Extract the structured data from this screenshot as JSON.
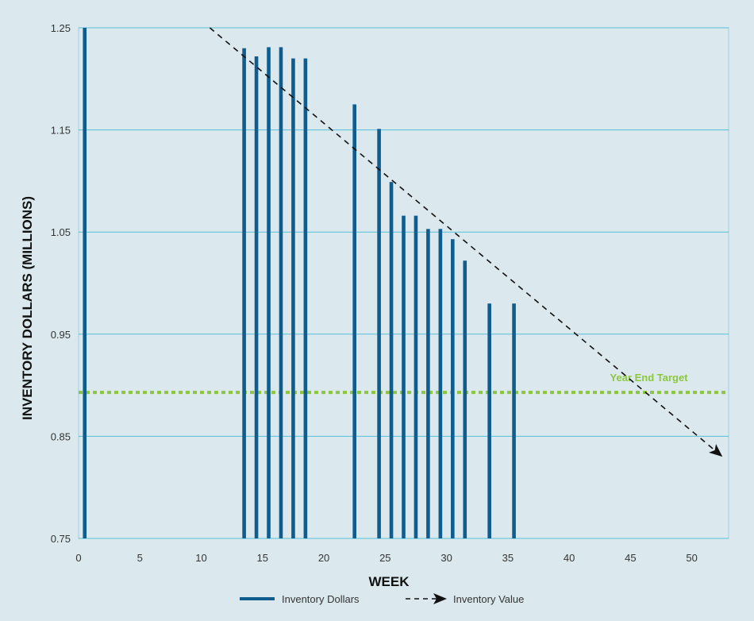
{
  "colors": {
    "background": "#dbe9ee",
    "plot_background": "#dbe9ee",
    "gridline": "#54bfd6",
    "axis": "#9fcedd",
    "bar": "#0f5c8f",
    "trend": "#111111",
    "target": "#8cc63f",
    "tick_text": "#333333"
  },
  "chart_data": {
    "type": "bar",
    "title": "",
    "xlabel": "WEEK",
    "ylabel": "INVENTORY DOLLARS (MILLIONS)",
    "xlim": [
      0,
      53
    ],
    "ylim": [
      0.75,
      1.25
    ],
    "x_ticks": [
      "0",
      "5",
      "10",
      "15",
      "20",
      "25",
      "30",
      "35",
      "40",
      "45",
      "50"
    ],
    "y_ticks": [
      "0.75",
      "0.85",
      "0.95",
      "1.05",
      "1.15",
      "1.25"
    ],
    "grid": "horizontal",
    "legend_position": "bottom-center",
    "series": [
      {
        "name": "Inventory Dollars",
        "type": "bar",
        "x": [
          0.5,
          13.5,
          14.5,
          15.5,
          16.5,
          17.5,
          18.5,
          22.5,
          24.5,
          25.5,
          26.5,
          27.5,
          28.5,
          29.5,
          30.5,
          31.5,
          33.5,
          35.5
        ],
        "values": [
          1.25,
          1.23,
          1.222,
          1.231,
          1.231,
          1.22,
          1.22,
          1.175,
          1.151,
          1.099,
          1.066,
          1.066,
          1.053,
          1.053,
          1.043,
          1.022,
          0.98,
          0.98
        ]
      },
      {
        "name": "Inventory Value",
        "type": "line",
        "style": "dashed-arrow",
        "x": [
          10.7,
          52.5
        ],
        "values": [
          1.25,
          0.83
        ]
      }
    ],
    "reference_lines": [
      {
        "label": "Year End Target",
        "value": 0.893,
        "style": "dotted"
      }
    ]
  }
}
